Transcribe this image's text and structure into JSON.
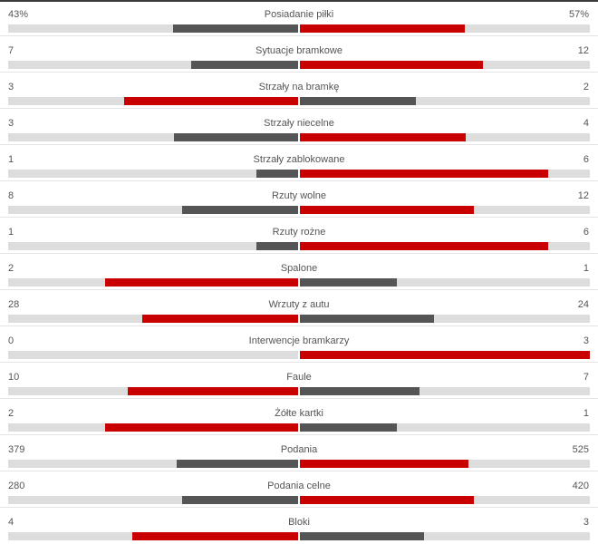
{
  "colors": {
    "higher": "#c80000",
    "lower": "#555555",
    "track": "#dddddd"
  },
  "stats": [
    {
      "label": "Posiadanie piłki",
      "home": "43%",
      "away": "57%",
      "home_value": 43,
      "away_value": 57
    },
    {
      "label": "Sytuacje bramkowe",
      "home": "7",
      "away": "12",
      "home_value": 7,
      "away_value": 12
    },
    {
      "label": "Strzały na bramkę",
      "home": "3",
      "away": "2",
      "home_value": 3,
      "away_value": 2
    },
    {
      "label": "Strzały niecelne",
      "home": "3",
      "away": "4",
      "home_value": 3,
      "away_value": 4
    },
    {
      "label": "Strzały zablokowane",
      "home": "1",
      "away": "6",
      "home_value": 1,
      "away_value": 6
    },
    {
      "label": "Rzuty wolne",
      "home": "8",
      "away": "12",
      "home_value": 8,
      "away_value": 12
    },
    {
      "label": "Rzuty rożne",
      "home": "1",
      "away": "6",
      "home_value": 1,
      "away_value": 6
    },
    {
      "label": "Spalone",
      "home": "2",
      "away": "1",
      "home_value": 2,
      "away_value": 1
    },
    {
      "label": "Wrzuty z autu",
      "home": "28",
      "away": "24",
      "home_value": 28,
      "away_value": 24
    },
    {
      "label": "Interwencje bramkarzy",
      "home": "0",
      "away": "3",
      "home_value": 0,
      "away_value": 3
    },
    {
      "label": "Faule",
      "home": "10",
      "away": "7",
      "home_value": 10,
      "away_value": 7
    },
    {
      "label": "Żółte kartki",
      "home": "2",
      "away": "1",
      "home_value": 2,
      "away_value": 1
    },
    {
      "label": "Podania",
      "home": "379",
      "away": "525",
      "home_value": 379,
      "away_value": 525
    },
    {
      "label": "Podania celne",
      "home": "280",
      "away": "420",
      "home_value": 280,
      "away_value": 420
    },
    {
      "label": "Bloki",
      "home": "4",
      "away": "3",
      "home_value": 4,
      "away_value": 3
    }
  ]
}
